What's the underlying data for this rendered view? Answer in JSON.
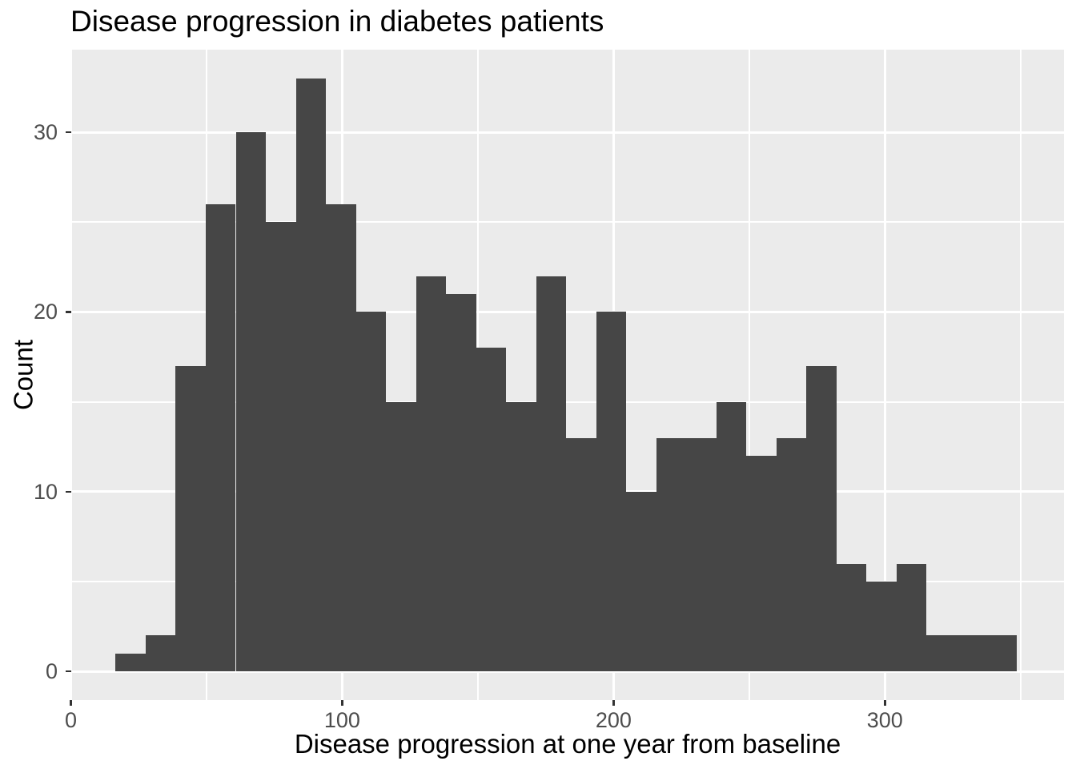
{
  "chart_data": {
    "type": "histogram",
    "title": "Disease progression in diabetes patients",
    "xlabel": "Disease progression at one year from baseline",
    "ylabel": "Count",
    "bins": {
      "start": 16.5,
      "width": 11.07
    },
    "counts": [
      1,
      2,
      17,
      26,
      30,
      25,
      33,
      26,
      20,
      15,
      22,
      21,
      18,
      15,
      22,
      13,
      20,
      10,
      13,
      13,
      15,
      12,
      13,
      17,
      6,
      5,
      6,
      2,
      2,
      2
    ],
    "x_axis": {
      "major_ticks": [
        0,
        100,
        200,
        300
      ],
      "minor_ticks": [
        50,
        150,
        250,
        350
      ],
      "range": [
        0,
        366
      ]
    },
    "y_axis": {
      "major_ticks": [
        0,
        10,
        20,
        30
      ],
      "minor_ticks": [
        5,
        15,
        25
      ],
      "range": [
        -1.6,
        34.6
      ]
    },
    "style": {
      "bar_color": "#464646",
      "panel_bg": "#EBEBEB",
      "grid_color": "#FFFFFF",
      "tick_label_color": "#4D4D4D",
      "tick_mark_color": "#333333",
      "text_color": "#000000",
      "grid": "on",
      "legend": "none"
    }
  }
}
